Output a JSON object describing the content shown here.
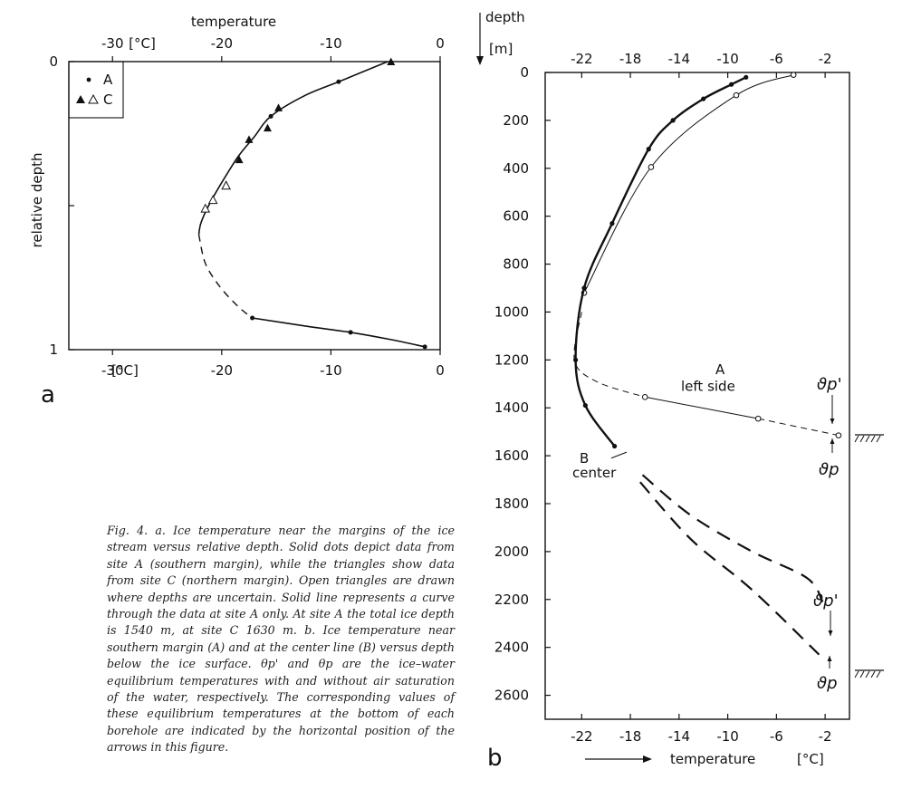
{
  "chart_data": [
    {
      "type": "line",
      "panel_label": "a",
      "title": "",
      "xlabel_top": "temperature",
      "unit_top": "[°C]",
      "unit_bottom": "[°C]",
      "ylabel": "relative depth",
      "xlim": [
        -34,
        0
      ],
      "ylim": [
        0,
        1
      ],
      "x_ticks": [
        "-30",
        "-20",
        "-10",
        "0"
      ],
      "x_tick_values": [
        -30,
        -20,
        -10,
        0
      ],
      "y_ticks": [
        "0",
        "1"
      ],
      "y_tick_values": [
        0,
        1
      ],
      "legend": {
        "position": "top-left",
        "entries": [
          {
            "symbol": "•",
            "label": "A"
          },
          {
            "symbol": "▲ △",
            "label": "C"
          }
        ]
      },
      "series": [
        {
          "name": "A",
          "marker": "dot",
          "points": [
            [
              -9.3,
              0.07
            ],
            [
              -15.5,
              0.19
            ],
            [
              -17.2,
              0.89
            ],
            [
              -8.2,
              0.94
            ],
            [
              -1.4,
              0.99
            ]
          ]
        },
        {
          "name": "C",
          "marker": "filled-triangle",
          "points": [
            [
              -4.5,
              0.0
            ],
            [
              -14.8,
              0.16
            ],
            [
              -15.8,
              0.23
            ],
            [
              -17.5,
              0.27
            ],
            [
              -18.4,
              0.34
            ]
          ]
        },
        {
          "name": "C",
          "marker": "open-triangle",
          "points": [
            [
              -19.6,
              0.43
            ],
            [
              -20.8,
              0.48
            ],
            [
              -21.5,
              0.51
            ]
          ]
        }
      ],
      "curve_solid": [
        [
          -4.8,
          0.0
        ],
        [
          -9.3,
          0.07
        ],
        [
          -12.5,
          0.12
        ],
        [
          -15.5,
          0.19
        ],
        [
          -17.0,
          0.26
        ],
        [
          -18.5,
          0.33
        ],
        [
          -20.0,
          0.42
        ],
        [
          -21.2,
          0.5
        ],
        [
          -21.9,
          0.56
        ],
        [
          -22.1,
          0.6
        ]
      ],
      "curve_dashed": [
        [
          -22.1,
          0.6
        ],
        [
          -21.5,
          0.7
        ],
        [
          -20.2,
          0.78
        ],
        [
          -18.5,
          0.85
        ],
        [
          -17.2,
          0.89
        ]
      ],
      "curve_solid_bottom": [
        [
          -17.2,
          0.89
        ],
        [
          -12.0,
          0.92
        ],
        [
          -8.2,
          0.94
        ],
        [
          -4.5,
          0.965
        ],
        [
          -1.4,
          0.99
        ]
      ]
    },
    {
      "type": "line",
      "panel_label": "b",
      "title": "",
      "ylabel": "depth",
      "yunit": "[m]",
      "xlabel": "temperature",
      "xunit": "[°C]",
      "xlim": [
        -25,
        0
      ],
      "ylim": [
        0,
        2700
      ],
      "x_ticks": [
        "-22",
        "-18",
        "-14",
        "-10",
        "-6",
        "-2"
      ],
      "x_tick_values": [
        -22,
        -18,
        -14,
        -10,
        -6,
        -2
      ],
      "y_ticks": [
        "0",
        "200",
        "400",
        "600",
        "800",
        "1000",
        "1200",
        "1400",
        "1600",
        "1800",
        "2000",
        "2200",
        "2400",
        "2600"
      ],
      "y_tick_values": [
        0,
        200,
        400,
        600,
        800,
        1000,
        1200,
        1400,
        1600,
        1800,
        2000,
        2200,
        2400,
        2600
      ],
      "series": [
        {
          "name": "A",
          "annotation": "left side",
          "style": "thin-open-circles",
          "points": [
            [
              -4.6,
              10
            ],
            [
              -9.3,
              95
            ],
            [
              -16.3,
              395
            ],
            [
              -21.8,
              920
            ],
            [
              -16.8,
              1355
            ],
            [
              -7.5,
              1445
            ],
            [
              -0.9,
              1515
            ]
          ]
        },
        {
          "name": "B",
          "annotation": "center",
          "style": "bold-dots",
          "points": [
            [
              -8.5,
              20
            ],
            [
              -9.7,
              50
            ],
            [
              -12,
              110
            ],
            [
              -14.5,
              200
            ],
            [
              -16.5,
              320
            ],
            [
              -19.5,
              630
            ],
            [
              -21.8,
              900
            ],
            [
              -22.5,
              1200
            ],
            [
              -21.7,
              1390
            ],
            [
              -19.3,
              1560
            ]
          ]
        }
      ],
      "annotations": [
        "A",
        "left side",
        "B",
        "center",
        "ϑp'",
        "ϑp",
        "ϑp'",
        "ϑp"
      ],
      "arrow_label": "temperature",
      "arrow_unit": "[°C]"
    }
  ],
  "panel_b_label": "b",
  "caption": "Fig. 4. a. Ice temperature near the margins of the ice stream versus relative depth. Solid dots depict data from site A (southern margin), while the triangles show data from site C (northern margin). Open triangles are drawn where depths are uncertain. Solid line represents a curve through the data at site A only. At site A the total ice depth is 1540 m, at site C 1630 m. b. Ice temperature near southern margin (A) and at the center line (B) versus depth below the ice surface. θp' and θp are the ice–water equilibrium temperatures with and without air saturation of the water, respectively. The corresponding values of these equilibrium temperatures at the bottom of each borehole are indicated by the horizontal position of the arrows in this figure."
}
